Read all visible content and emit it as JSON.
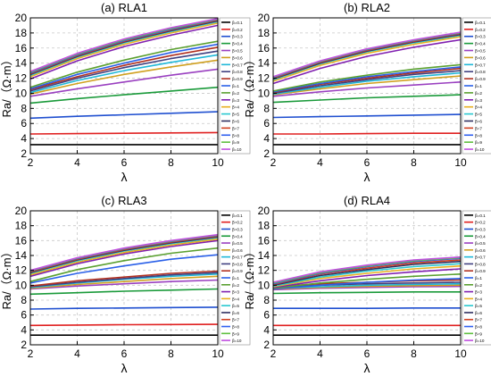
{
  "figure": {
    "background": "#ffffff"
  },
  "chart_data": [
    {
      "type": "line",
      "title": "(a) RLA1",
      "xlabel": "λ",
      "ylabel": "Ra/（Ω·m）",
      "xlim": [
        2,
        10
      ],
      "ylim": [
        2,
        20
      ],
      "xticks": [
        2,
        4,
        6,
        8,
        10
      ],
      "yticks": [
        2,
        4,
        6,
        8,
        10,
        12,
        14,
        16,
        18,
        20
      ],
      "grid": true,
      "legend_position": "right",
      "x": [
        2,
        4,
        6,
        8,
        10
      ],
      "series": [
        {
          "name": "β=0.1",
          "color": "#000000",
          "values": [
            3.2,
            3.2,
            3.2,
            3.2,
            3.2
          ]
        },
        {
          "name": "β=0.2",
          "color": "#e02020",
          "values": [
            4.6,
            4.65,
            4.7,
            4.75,
            4.8
          ]
        },
        {
          "name": "β=0.3",
          "color": "#1f4fd0",
          "values": [
            6.7,
            6.95,
            7.15,
            7.35,
            7.55
          ]
        },
        {
          "name": "β=0.4",
          "color": "#1a9a3a",
          "values": [
            8.7,
            9.3,
            9.8,
            10.3,
            10.8
          ]
        },
        {
          "name": "β=0.5",
          "color": "#9a40c0",
          "values": [
            9.6,
            10.6,
            11.5,
            12.4,
            13.2
          ]
        },
        {
          "name": "β=0.6",
          "color": "#d0a020",
          "values": [
            9.9,
            11.3,
            12.5,
            13.5,
            14.4
          ]
        },
        {
          "name": "β=0.7",
          "color": "#20b8d8",
          "values": [
            10.1,
            11.7,
            13.0,
            14.1,
            15.1
          ]
        },
        {
          "name": "β=0.8",
          "color": "#404080",
          "values": [
            10.3,
            12.0,
            13.4,
            14.6,
            15.6
          ]
        },
        {
          "name": "β=0.9",
          "color": "#b03020",
          "values": [
            10.5,
            12.2,
            13.7,
            15.0,
            16.1
          ]
        },
        {
          "name": "β=1",
          "color": "#2a60e8",
          "values": [
            10.6,
            12.5,
            14.0,
            15.4,
            16.5
          ]
        },
        {
          "name": "β=2",
          "color": "#5aa030",
          "values": [
            10.8,
            12.8,
            14.4,
            15.8,
            16.9
          ]
        },
        {
          "name": "β=3",
          "color": "#8020b0",
          "values": [
            11.9,
            14.3,
            16.2,
            17.7,
            19.0
          ]
        },
        {
          "name": "β=4",
          "color": "#e8b020",
          "values": [
            12.2,
            14.6,
            16.5,
            18.0,
            19.3
          ]
        },
        {
          "name": "β=5",
          "color": "#28c8d0",
          "values": [
            12.4,
            14.8,
            16.7,
            18.2,
            19.5
          ]
        },
        {
          "name": "β=6",
          "color": "#303060",
          "values": [
            12.5,
            14.9,
            16.8,
            18.3,
            19.6
          ]
        },
        {
          "name": "β=7",
          "color": "#d04020",
          "values": [
            12.6,
            15.0,
            16.9,
            18.4,
            19.7
          ]
        },
        {
          "name": "β=8",
          "color": "#3060f0",
          "values": [
            12.7,
            15.1,
            17.0,
            18.5,
            19.8
          ]
        },
        {
          "name": "β=9",
          "color": "#60c040",
          "values": [
            12.8,
            15.2,
            17.1,
            18.6,
            19.85
          ]
        },
        {
          "name": "β=10",
          "color": "#c050e0",
          "values": [
            12.9,
            15.3,
            17.2,
            18.7,
            19.9
          ]
        }
      ]
    },
    {
      "type": "line",
      "title": "(b) RLA2",
      "xlabel": "λ",
      "ylabel": "Ra/（Ω·m）",
      "xlim": [
        2,
        10
      ],
      "ylim": [
        2,
        20
      ],
      "xticks": [
        2,
        4,
        6,
        8,
        10
      ],
      "yticks": [
        2,
        4,
        6,
        8,
        10,
        12,
        14,
        16,
        18,
        20
      ],
      "grid": true,
      "legend_position": "right",
      "x": [
        2,
        4,
        6,
        8,
        10
      ],
      "series": [
        {
          "name": "β=0.1",
          "color": "#000000",
          "values": [
            3.2,
            3.2,
            3.2,
            3.2,
            3.2
          ]
        },
        {
          "name": "β=0.2",
          "color": "#e02020",
          "values": [
            4.6,
            4.6,
            4.65,
            4.7,
            4.7
          ]
        },
        {
          "name": "β=0.3",
          "color": "#1f4fd0",
          "values": [
            6.8,
            6.9,
            7.0,
            7.1,
            7.2
          ]
        },
        {
          "name": "β=0.4",
          "color": "#1a9a3a",
          "values": [
            8.8,
            9.1,
            9.4,
            9.6,
            9.8
          ]
        },
        {
          "name": "β=0.5",
          "color": "#9a40c0",
          "values": [
            9.6,
            10.2,
            10.7,
            11.1,
            11.5
          ]
        },
        {
          "name": "β=0.6",
          "color": "#d0a020",
          "values": [
            9.8,
            10.6,
            11.3,
            11.8,
            12.3
          ]
        },
        {
          "name": "β=0.7",
          "color": "#20b8d8",
          "values": [
            9.9,
            10.8,
            11.6,
            12.2,
            12.7
          ]
        },
        {
          "name": "β=0.8",
          "color": "#404080",
          "values": [
            10.0,
            11.0,
            11.8,
            12.5,
            13.0
          ]
        },
        {
          "name": "β=0.9",
          "color": "#b03020",
          "values": [
            10.1,
            11.2,
            12.0,
            12.7,
            13.3
          ]
        },
        {
          "name": "β=1",
          "color": "#2a60e8",
          "values": [
            10.2,
            11.3,
            12.2,
            12.9,
            13.5
          ]
        },
        {
          "name": "β=2",
          "color": "#5aa030",
          "values": [
            10.3,
            11.5,
            12.4,
            13.2,
            13.8
          ]
        },
        {
          "name": "β=3",
          "color": "#8020b0",
          "values": [
            11.3,
            13.3,
            14.9,
            16.1,
            17.1
          ]
        },
        {
          "name": "β=4",
          "color": "#e8b020",
          "values": [
            11.6,
            13.7,
            15.3,
            16.5,
            17.5
          ]
        },
        {
          "name": "β=5",
          "color": "#28c8d0",
          "values": [
            11.8,
            13.9,
            15.5,
            16.7,
            17.7
          ]
        },
        {
          "name": "β=6",
          "color": "#303060",
          "values": [
            11.9,
            14.0,
            15.6,
            16.8,
            17.8
          ]
        },
        {
          "name": "β=7",
          "color": "#d04020",
          "values": [
            12.0,
            14.1,
            15.7,
            16.9,
            17.9
          ]
        },
        {
          "name": "β=8",
          "color": "#3060f0",
          "values": [
            12.1,
            14.2,
            15.8,
            17.0,
            18.0
          ]
        },
        {
          "name": "β=9",
          "color": "#60c040",
          "values": [
            12.15,
            14.25,
            15.85,
            17.05,
            18.05
          ]
        },
        {
          "name": "β=10",
          "color": "#c050e0",
          "values": [
            12.2,
            14.3,
            15.9,
            17.1,
            18.1
          ]
        }
      ]
    },
    {
      "type": "line",
      "title": "(c) RLA3",
      "xlabel": "λ",
      "ylabel": "Ra/（Ω·m）",
      "xlim": [
        2,
        10
      ],
      "ylim": [
        2,
        20
      ],
      "xticks": [
        2,
        4,
        6,
        8,
        10
      ],
      "yticks": [
        2,
        4,
        6,
        8,
        10,
        12,
        14,
        16,
        18,
        20
      ],
      "grid": true,
      "legend_position": "right",
      "x": [
        2,
        4,
        6,
        8,
        10
      ],
      "series": [
        {
          "name": "β=0.1",
          "color": "#000000",
          "values": [
            3.3,
            3.3,
            3.3,
            3.3,
            3.3
          ]
        },
        {
          "name": "β=0.2",
          "color": "#e02020",
          "values": [
            4.6,
            4.65,
            4.7,
            4.72,
            4.75
          ]
        },
        {
          "name": "β=0.3",
          "color": "#1f4fd0",
          "values": [
            6.8,
            6.9,
            6.95,
            7.0,
            7.05
          ]
        },
        {
          "name": "β=0.4",
          "color": "#1a9a3a",
          "values": [
            8.8,
            9.0,
            9.2,
            9.35,
            9.5
          ]
        },
        {
          "name": "β=0.5",
          "color": "#9a40c0",
          "values": [
            9.5,
            9.9,
            10.2,
            10.5,
            10.7
          ]
        },
        {
          "name": "β=0.6",
          "color": "#d0a020",
          "values": [
            9.6,
            10.1,
            10.5,
            10.9,
            11.2
          ]
        },
        {
          "name": "β=0.7",
          "color": "#20b8d8",
          "values": [
            9.7,
            10.3,
            10.8,
            11.2,
            11.5
          ]
        },
        {
          "name": "β=0.8",
          "color": "#404080",
          "values": [
            9.8,
            10.4,
            10.9,
            11.4,
            11.7
          ]
        },
        {
          "name": "β=0.9",
          "color": "#b03020",
          "values": [
            9.9,
            10.6,
            11.1,
            11.6,
            11.9
          ]
        },
        {
          "name": "β=1",
          "color": "#2a60e8",
          "values": [
            10.3,
            11.6,
            12.6,
            13.5,
            14.1
          ]
        },
        {
          "name": "β=2",
          "color": "#5aa030",
          "values": [
            10.5,
            12.1,
            13.3,
            14.3,
            15.0
          ]
        },
        {
          "name": "β=3",
          "color": "#8020b0",
          "values": [
            11.2,
            12.9,
            14.2,
            15.2,
            16.0
          ]
        },
        {
          "name": "β=4",
          "color": "#e8b020",
          "values": [
            11.4,
            13.1,
            14.4,
            15.4,
            16.2
          ]
        },
        {
          "name": "β=5",
          "color": "#28c8d0",
          "values": [
            11.6,
            13.3,
            14.6,
            15.6,
            16.4
          ]
        },
        {
          "name": "β=6",
          "color": "#303060",
          "values": [
            11.7,
            13.4,
            14.7,
            15.7,
            16.5
          ]
        },
        {
          "name": "β=7",
          "color": "#d04020",
          "values": [
            11.8,
            13.5,
            14.8,
            15.8,
            16.6
          ]
        },
        {
          "name": "β=8",
          "color": "#3060f0",
          "values": [
            11.9,
            13.6,
            14.9,
            15.9,
            16.7
          ]
        },
        {
          "name": "β=9",
          "color": "#60c040",
          "values": [
            11.95,
            13.65,
            14.95,
            15.95,
            16.75
          ]
        },
        {
          "name": "β=10",
          "color": "#c050e0",
          "values": [
            12.0,
            13.7,
            15.0,
            16.0,
            16.8
          ]
        }
      ]
    },
    {
      "type": "line",
      "title": "(d) RLA4",
      "xlabel": "λ",
      "ylabel": "Ra/（Ω·m）",
      "xlim": [
        2,
        10
      ],
      "ylim": [
        2,
        20
      ],
      "xticks": [
        2,
        4,
        6,
        8,
        10
      ],
      "yticks": [
        2,
        4,
        6,
        8,
        10,
        12,
        14,
        16,
        18,
        20
      ],
      "grid": true,
      "legend_position": "right",
      "x": [
        2,
        4,
        6,
        8,
        10
      ],
      "series": [
        {
          "name": "β=0.1",
          "color": "#000000",
          "values": [
            3.3,
            3.3,
            3.3,
            3.3,
            3.3
          ]
        },
        {
          "name": "β=0.2",
          "color": "#e02020",
          "values": [
            4.6,
            4.6,
            4.6,
            4.6,
            4.6
          ]
        },
        {
          "name": "β=0.3",
          "color": "#1f4fd0",
          "values": [
            6.9,
            6.9,
            6.9,
            6.95,
            6.95
          ]
        },
        {
          "name": "β=0.4",
          "color": "#1a9a3a",
          "values": [
            8.9,
            9.0,
            9.05,
            9.1,
            9.1
          ]
        },
        {
          "name": "β=0.5",
          "color": "#9a40c0",
          "values": [
            9.4,
            9.6,
            9.7,
            9.8,
            9.85
          ]
        },
        {
          "name": "β=0.6",
          "color": "#d0a020",
          "values": [
            9.5,
            9.7,
            9.85,
            9.95,
            10.0
          ]
        },
        {
          "name": "β=0.7",
          "color": "#20b8d8",
          "values": [
            9.6,
            9.8,
            10.0,
            10.1,
            10.2
          ]
        },
        {
          "name": "β=0.8",
          "color": "#404080",
          "values": [
            9.7,
            10.0,
            10.2,
            10.3,
            10.4
          ]
        },
        {
          "name": "β=0.9",
          "color": "#b03020",
          "values": [
            9.8,
            10.2,
            10.4,
            10.6,
            10.7
          ]
        },
        {
          "name": "β=1",
          "color": "#2a60e8",
          "values": [
            9.5,
            10.0,
            10.4,
            10.7,
            10.9
          ]
        },
        {
          "name": "β=2",
          "color": "#5aa030",
          "values": [
            9.6,
            10.3,
            10.8,
            11.2,
            11.5
          ]
        },
        {
          "name": "β=3",
          "color": "#8020b0",
          "values": [
            9.7,
            10.6,
            11.3,
            11.8,
            12.2
          ]
        },
        {
          "name": "β=4",
          "color": "#e8b020",
          "values": [
            9.8,
            10.9,
            11.6,
            12.2,
            12.6
          ]
        },
        {
          "name": "β=5",
          "color": "#28c8d0",
          "values": [
            9.9,
            11.1,
            11.9,
            12.5,
            12.9
          ]
        },
        {
          "name": "β=6",
          "color": "#303060",
          "values": [
            10.0,
            11.3,
            12.1,
            12.8,
            13.2
          ]
        },
        {
          "name": "β=7",
          "color": "#d04020",
          "values": [
            10.1,
            11.5,
            12.3,
            13.0,
            13.4
          ]
        },
        {
          "name": "β=8",
          "color": "#3060f0",
          "values": [
            10.2,
            11.6,
            12.5,
            13.2,
            13.6
          ]
        },
        {
          "name": "β=9",
          "color": "#60c040",
          "values": [
            10.3,
            11.7,
            12.6,
            13.3,
            13.7
          ]
        },
        {
          "name": "β=10",
          "color": "#c050e0",
          "values": [
            10.4,
            11.8,
            12.7,
            13.4,
            13.8
          ]
        }
      ]
    }
  ]
}
